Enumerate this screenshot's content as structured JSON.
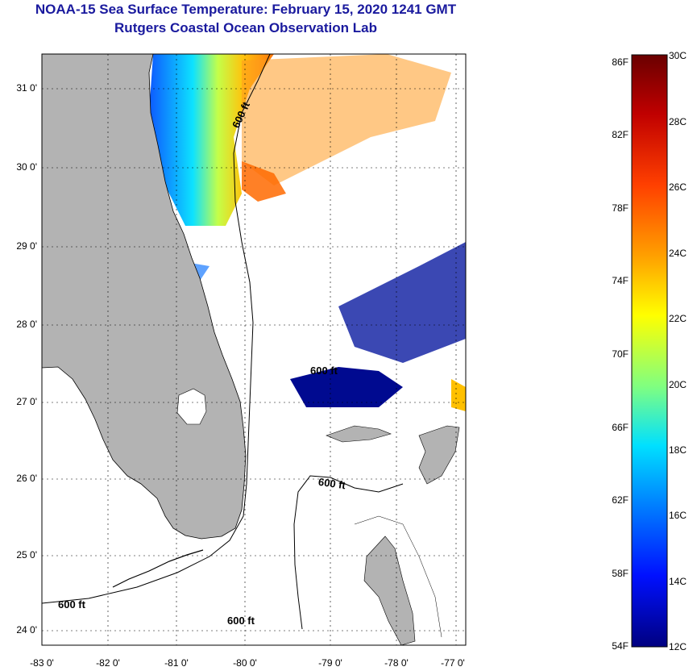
{
  "header": {
    "title": "NOAA-15 Sea Surface Temperature:  February 15, 2020 1241 GMT",
    "subtitle": "Rutgers Coastal Ocean Observation Lab"
  },
  "map": {
    "lat_labels": [
      "31 0'",
      "30 0'",
      "29 0'",
      "28 0'",
      "27 0'",
      "26 0'",
      "25 0'",
      "24 0'"
    ],
    "lon_labels": [
      "-83 0'",
      "-82 0'",
      "-81 0'",
      "-80 0'",
      "-79 0'",
      "-78 0'",
      "-77 0'"
    ],
    "isobath_label": "600 ft",
    "colors": {
      "land": "#b3b3b3",
      "water": "#ffffff",
      "coast": "#000000"
    }
  },
  "colorbar": {
    "fahrenheit": [
      "86F",
      "82F",
      "78F",
      "74F",
      "70F",
      "66F",
      "62F",
      "58F",
      "54F"
    ],
    "celsius": [
      "30C",
      "28C",
      "26C",
      "24C",
      "22C",
      "20C",
      "18C",
      "16C",
      "14C",
      "12C"
    ],
    "stops": [
      "#800000",
      "#d40000",
      "#ff5500",
      "#ffaa00",
      "#ffff00",
      "#aaff55",
      "#55ffaa",
      "#00d4ff",
      "#0080ff",
      "#0020ff",
      "#000090"
    ]
  }
}
